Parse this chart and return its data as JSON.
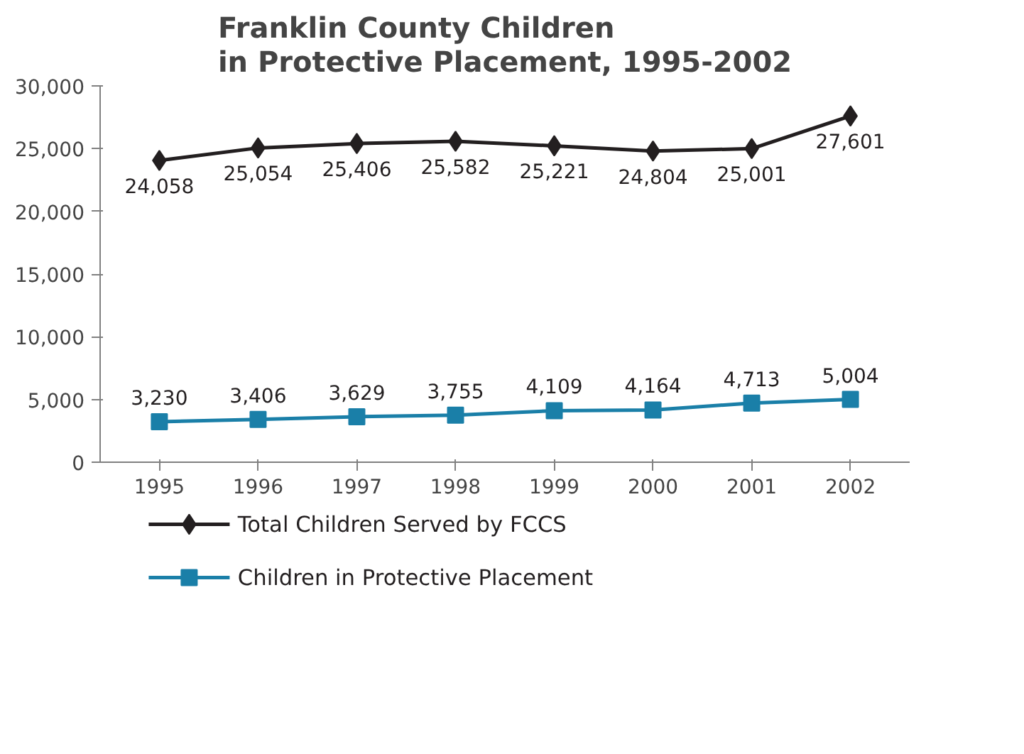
{
  "chart_data": {
    "type": "line",
    "title": "Franklin County Children\nin Protective Placement, 1995-2002",
    "categories": [
      "1995",
      "1996",
      "1997",
      "1998",
      "1999",
      "2000",
      "2001",
      "2002"
    ],
    "series": [
      {
        "name": "Total Children Served by FCCS",
        "color": "#231f20",
        "marker": "diamond",
        "values": [
          24058,
          25054,
          25406,
          25582,
          25221,
          24804,
          25001,
          27601
        ],
        "value_labels": [
          "24,058",
          "25,054",
          "25,406",
          "25,582",
          "25,221",
          "24,804",
          "25,001",
          "27,601"
        ]
      },
      {
        "name": "Children in Protective Placement",
        "color": "#1a7fa8",
        "marker": "square",
        "values": [
          3230,
          3406,
          3629,
          3755,
          4109,
          4164,
          4713,
          5004
        ],
        "value_labels": [
          "3,230",
          "3,406",
          "3,629",
          "3,755",
          "4,109",
          "4,164",
          "4,713",
          "5,004"
        ]
      }
    ],
    "ylim": [
      0,
      30000
    ],
    "yticks": [
      {
        "value": 0,
        "label": "0"
      },
      {
        "value": 5000,
        "label": "5,000"
      },
      {
        "value": 10000,
        "label": "10,000"
      },
      {
        "value": 15000,
        "label": "15,000"
      },
      {
        "value": 20000,
        "label": "20,000"
      },
      {
        "value": 25000,
        "label": "25,000"
      },
      {
        "value": 30000,
        "label": "30,000"
      }
    ],
    "legend": "bottom",
    "grid": false
  }
}
